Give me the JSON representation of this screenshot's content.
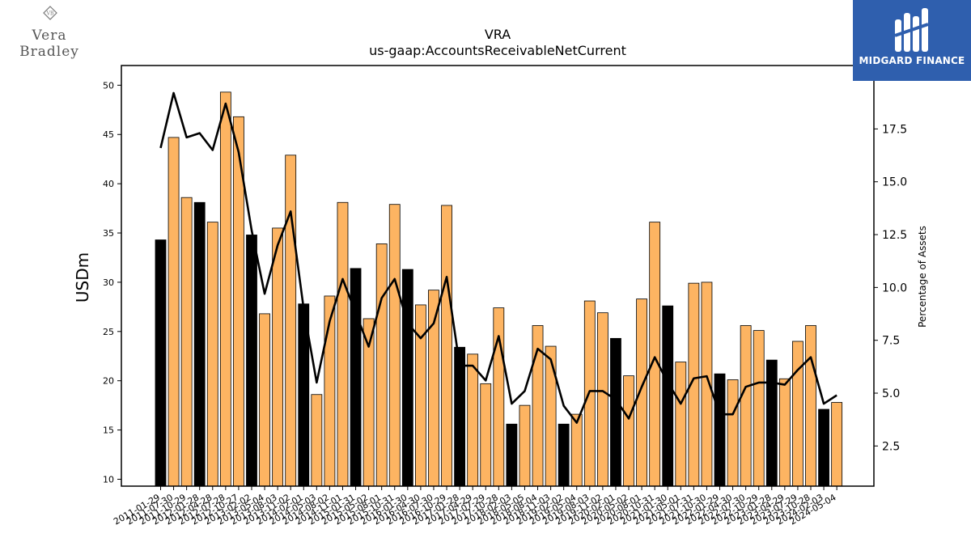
{
  "branding": {
    "company_logo_text": "Vera Bradley",
    "sponsor_logo_text": "MIDGARD FINANCE"
  },
  "chart_data": {
    "type": "bar",
    "title": "VRA",
    "subtitle": "us-gaap:AccountsReceivableNetCurrent",
    "ylabel": "USDm",
    "y2label": "Percentage of Assets",
    "ylim": [
      9.3,
      52
    ],
    "y2lim": [
      0.6,
      20.5
    ],
    "yticks": [
      10,
      15,
      20,
      25,
      30,
      35,
      40,
      45,
      50
    ],
    "y2ticks": [
      "2.5",
      "5.0",
      "7.5",
      "10.0",
      "12.5",
      "15.0",
      "17.5"
    ],
    "categories": [
      "2011-01-29",
      "2011-07-30",
      "2011-10-29",
      "2012-01-28",
      "2012-04-28",
      "2012-07-28",
      "2012-10-27",
      "2013-02-02",
      "2013-05-04",
      "2013-08-03",
      "2013-11-02",
      "2014-02-01",
      "2014-05-03",
      "2014-08-02",
      "2014-11-01",
      "2015-01-31",
      "2015-05-02",
      "2015-08-01",
      "2015-10-31",
      "2016-01-30",
      "2016-04-30",
      "2016-07-30",
      "2016-10-29",
      "2017-01-28",
      "2017-04-29",
      "2017-07-29",
      "2017-10-28",
      "2018-02-03",
      "2018-05-05",
      "2018-08-04",
      "2018-11-03",
      "2019-02-02",
      "2019-05-04",
      "2019-08-03",
      "2019-11-02",
      "2020-02-01",
      "2020-05-02",
      "2020-08-01",
      "2020-10-31",
      "2021-01-30",
      "2021-05-01",
      "2021-07-31",
      "2021-10-30",
      "2022-01-29",
      "2022-04-30",
      "2022-07-30",
      "2022-10-29",
      "2023-01-28",
      "2023-04-29",
      "2023-07-29",
      "2023-10-28",
      "2024-02-03",
      "2024-05-04"
    ],
    "series": [
      {
        "values": [
          34.3,
          44.7,
          38.6,
          38.1,
          36.1,
          49.3,
          46.8,
          34.8,
          26.8,
          35.5,
          42.9,
          27.8,
          18.6,
          28.6,
          38.1,
          31.4,
          26.3,
          33.9,
          37.9,
          31.3,
          27.7,
          29.2,
          37.8,
          23.4,
          22.7,
          19.7,
          27.4,
          15.6,
          17.5,
          25.6,
          23.5,
          15.6,
          16.6,
          28.1,
          26.9,
          24.3,
          20.5,
          28.3,
          36.1,
          27.6,
          21.9,
          29.9,
          30.0,
          20.7,
          20.1,
          25.6,
          25.1,
          22.1,
          20.2,
          24.0,
          25.6,
          17.1,
          17.8
        ],
        "fiscal_year_end": [
          true,
          false,
          false,
          true,
          false,
          false,
          false,
          true,
          false,
          false,
          false,
          true,
          false,
          false,
          false,
          true,
          false,
          false,
          false,
          true,
          false,
          false,
          false,
          true,
          false,
          false,
          false,
          true,
          false,
          false,
          false,
          true,
          false,
          false,
          false,
          true,
          false,
          false,
          false,
          true,
          false,
          false,
          false,
          true,
          false,
          false,
          false,
          true,
          false,
          false,
          false,
          true,
          false
        ]
      },
      {
        "name": "Percentage of Assets",
        "axis": "right",
        "values": [
          16.6,
          19.2,
          17.1,
          17.3,
          16.5,
          18.7,
          16.4,
          12.7,
          9.7,
          12.0,
          13.6,
          9.0,
          5.5,
          8.4,
          10.4,
          8.8,
          7.2,
          9.5,
          10.4,
          8.3,
          7.6,
          8.3,
          10.5,
          6.3,
          6.3,
          5.6,
          7.7,
          4.5,
          5.1,
          7.1,
          6.6,
          4.4,
          3.6,
          5.1,
          5.1,
          4.7,
          3.8,
          5.3,
          6.7,
          5.5,
          4.5,
          5.7,
          5.8,
          4.0,
          4.0,
          5.3,
          5.5,
          5.5,
          5.4,
          6.1,
          6.7,
          4.5,
          4.9
        ]
      }
    ],
    "colors": {
      "fiscal_year_end": "#000000",
      "quarter": "#fdb462",
      "line": "#000000"
    }
  }
}
